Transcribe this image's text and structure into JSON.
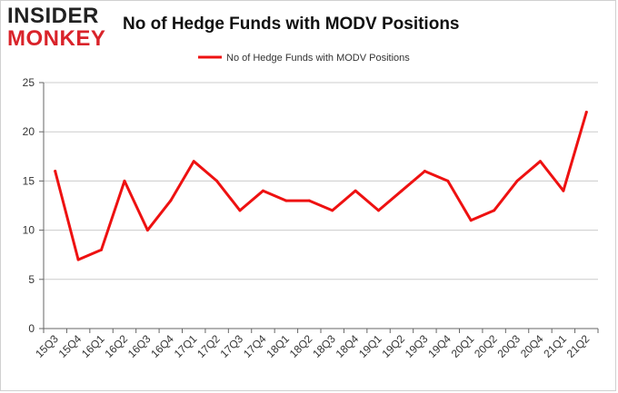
{
  "header": {
    "logo_line1": "INSIDER",
    "logo_line2": "MONKEY",
    "title": "No of Hedge Funds with MODV Positions"
  },
  "colors": {
    "line": "#ee1111",
    "grid": "#cccccc",
    "axis": "#666666",
    "logo_red": "#d9232a"
  },
  "chart_data": {
    "type": "line",
    "title": "No of Hedge Funds with MODV Positions",
    "xlabel": "",
    "ylabel": "",
    "ylim": [
      0,
      25
    ],
    "yticks": [
      0,
      5,
      10,
      15,
      20,
      25
    ],
    "grid": true,
    "legend_position": "top-center",
    "categories": [
      "15Q3",
      "15Q4",
      "16Q1",
      "16Q2",
      "16Q3",
      "16Q4",
      "17Q1",
      "17Q2",
      "17Q3",
      "17Q4",
      "18Q1",
      "18Q2",
      "18Q3",
      "18Q4",
      "19Q1",
      "19Q2",
      "19Q3",
      "19Q4",
      "20Q1",
      "20Q2",
      "20Q3",
      "20Q4",
      "21Q1",
      "21Q2"
    ],
    "series": [
      {
        "name": "No of Hedge Funds with MODV Positions",
        "values": [
          16,
          7,
          8,
          15,
          10,
          13,
          17,
          15,
          12,
          14,
          13,
          13,
          12,
          14,
          12,
          14,
          16,
          15,
          11,
          12,
          15,
          17,
          14,
          22
        ]
      }
    ]
  }
}
